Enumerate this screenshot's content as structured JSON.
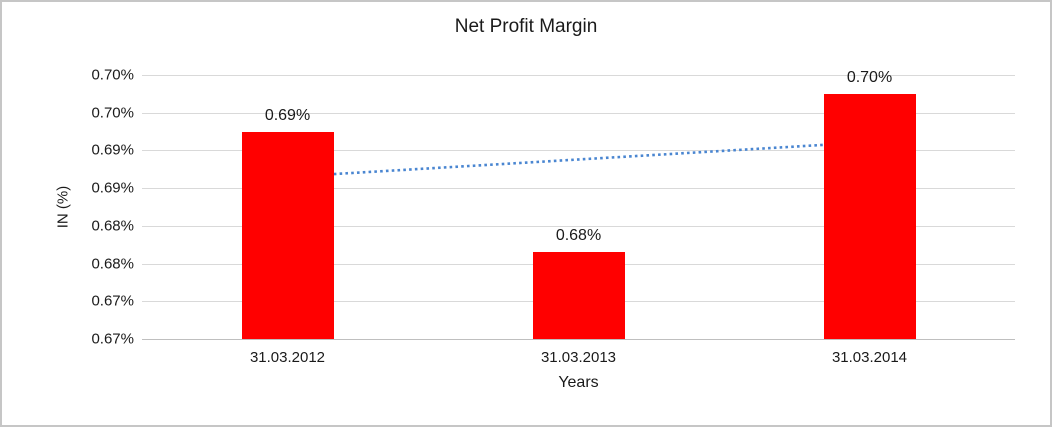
{
  "window": {
    "background_color": "#ffffff",
    "border_color": "#c6c6c6"
  },
  "chart": {
    "title": "Net Profit Margin",
    "y_axis_title": "IN (%)",
    "x_axis_title": "Years",
    "colors": {
      "bar": "#ff0000",
      "trendline": "#4a86d1",
      "gridline": "#d9d9d9",
      "axis_line": "#bfbfbf",
      "text": "#1a1a1a"
    }
  },
  "chart_data": {
    "type": "bar",
    "title": "Net Profit Margin",
    "xlabel": "Years",
    "ylabel": "IN (%)",
    "categories": [
      "31.03.2012",
      "31.03.2013",
      "31.03.2014"
    ],
    "values": [
      0.6925,
      0.6765,
      0.6975
    ],
    "data_labels": [
      "0.69%",
      "0.68%",
      "0.70%"
    ],
    "series": [
      {
        "name": "Net Profit Margin",
        "values": [
          0.6925,
          0.6765,
          0.6975
        ],
        "color": "#ff0000"
      }
    ],
    "y_ticks": [
      {
        "value": 0.7,
        "label": "0.70%"
      },
      {
        "value": 0.695,
        "label": "0.70%"
      },
      {
        "value": 0.69,
        "label": "0.69%"
      },
      {
        "value": 0.685,
        "label": "0.69%"
      },
      {
        "value": 0.68,
        "label": "0.68%"
      },
      {
        "value": 0.675,
        "label": "0.68%"
      },
      {
        "value": 0.67,
        "label": "0.67%"
      },
      {
        "value": 0.665,
        "label": "0.67%"
      }
    ],
    "ylim": [
      0.665,
      0.7
    ],
    "grid": true,
    "legend": false,
    "trendline": {
      "type": "linear",
      "style": "dotted",
      "color": "#4a86d1",
      "start_value": 0.6865,
      "end_value": 0.6911
    }
  }
}
